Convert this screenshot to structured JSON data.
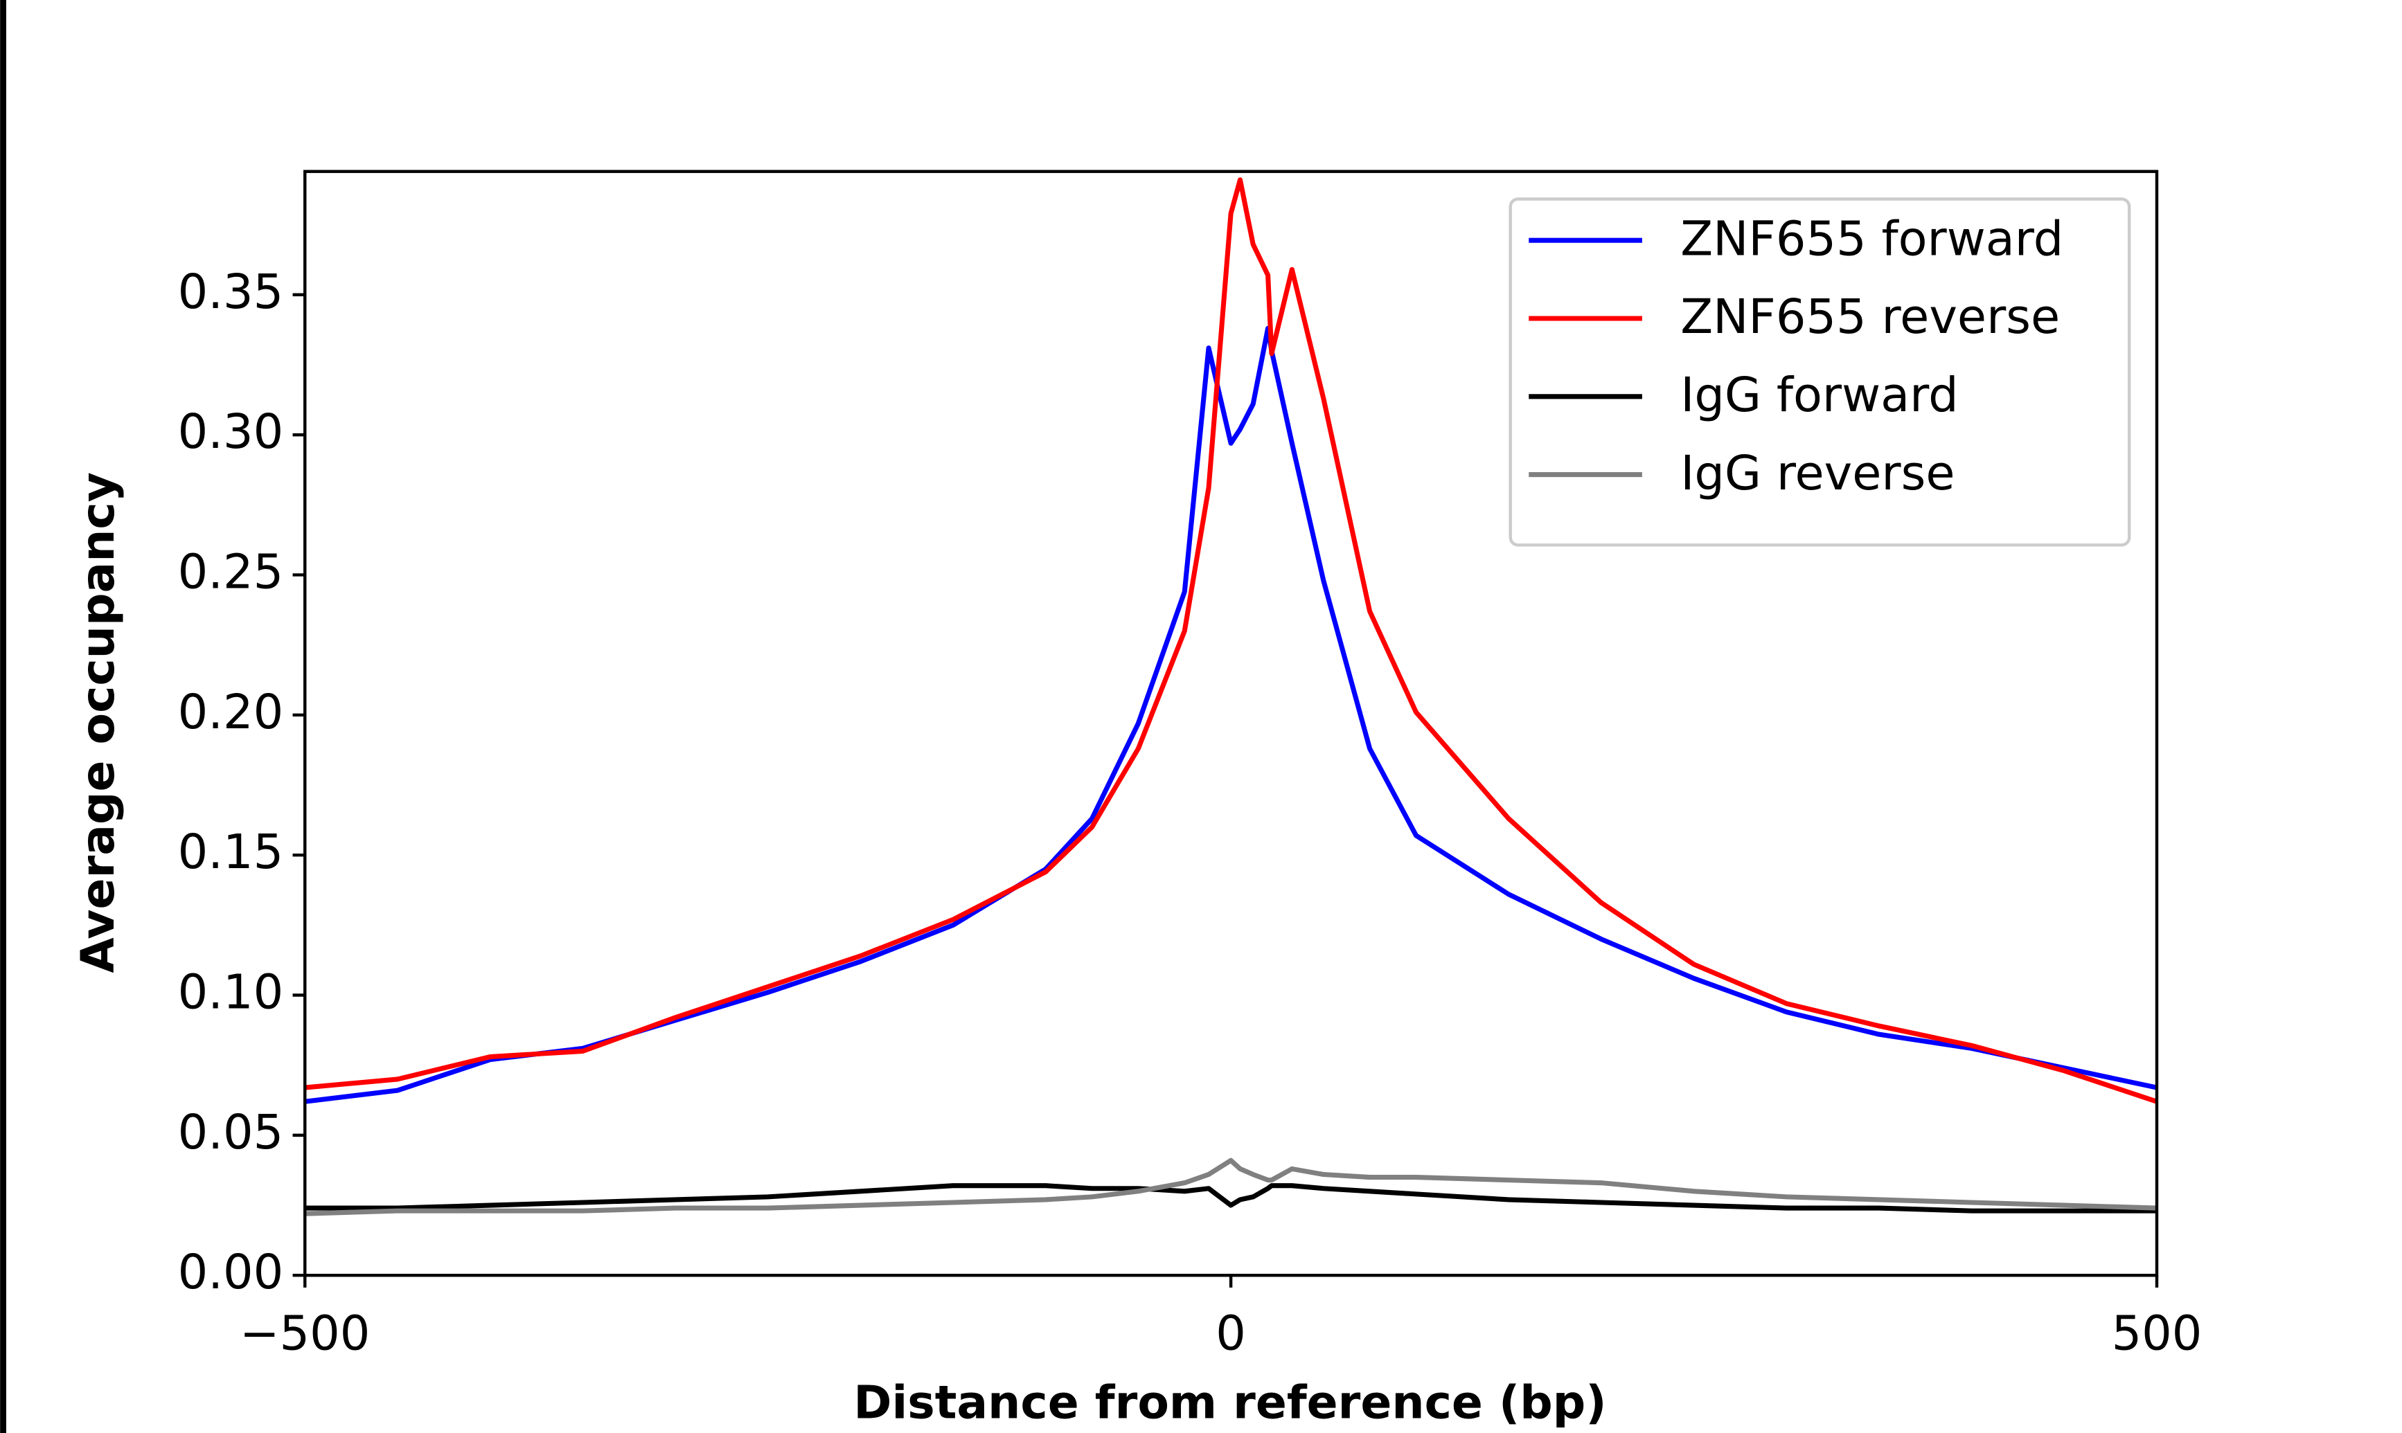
{
  "chart_data": {
    "type": "line",
    "x_label": "Distance from reference (bp)",
    "y_label": "Average occupancy",
    "xlim": [
      -500,
      500
    ],
    "xticks": [
      {
        "value": -500,
        "label": "−500"
      },
      0,
      500
    ],
    "ylim": [
      0,
      0.394
    ],
    "yticks": [
      {
        "value": 0,
        "label": "0.00"
      },
      {
        "value": 0.05,
        "label": "0.05"
      },
      {
        "value": 0.1,
        "label": "0.10"
      },
      {
        "value": 0.15,
        "label": "0.15"
      },
      {
        "value": 0.2,
        "label": "0.20"
      },
      {
        "value": 0.25,
        "label": "0.25"
      },
      {
        "value": 0.3,
        "label": "0.30"
      },
      {
        "value": 0.35,
        "label": "0.35"
      }
    ],
    "grid": false,
    "legend": "upper right",
    "x": [
      -500,
      -450,
      -400,
      -350,
      -300,
      -250,
      -200,
      -150,
      -100,
      -75,
      -50,
      -25,
      -12,
      0,
      5,
      12,
      20,
      22,
      33,
      50,
      75,
      100,
      150,
      200,
      250,
      300,
      350,
      400,
      450,
      500
    ],
    "series": [
      {
        "name": "ZNF655 forward",
        "color": "#0000ff",
        "values": [
          0.062,
          0.066,
          0.077,
          0.081,
          0.091,
          0.101,
          0.112,
          0.125,
          0.145,
          0.163,
          0.197,
          0.244,
          0.331,
          0.297,
          0.302,
          0.311,
          0.338,
          0.33,
          0.297,
          0.248,
          0.188,
          0.157,
          0.136,
          0.12,
          0.106,
          0.094,
          0.086,
          0.081,
          0.074,
          0.067
        ]
      },
      {
        "name": "ZNF655 reverse",
        "color": "#ff0000",
        "values": [
          0.067,
          0.07,
          0.078,
          0.08,
          0.092,
          0.103,
          0.114,
          0.127,
          0.144,
          0.16,
          0.188,
          0.23,
          0.281,
          0.379,
          0.391,
          0.368,
          0.357,
          0.329,
          0.359,
          0.313,
          0.237,
          0.201,
          0.163,
          0.133,
          0.111,
          0.097,
          0.089,
          0.082,
          0.073,
          0.062
        ]
      },
      {
        "name": "IgG forward",
        "color": "#000000",
        "values": [
          0.024,
          0.024,
          0.025,
          0.026,
          0.027,
          0.028,
          0.03,
          0.032,
          0.032,
          0.031,
          0.031,
          0.03,
          0.031,
          0.025,
          0.027,
          0.028,
          0.031,
          0.032,
          0.032,
          0.031,
          0.03,
          0.029,
          0.027,
          0.026,
          0.025,
          0.024,
          0.024,
          0.023,
          0.023,
          0.023
        ]
      },
      {
        "name": "IgG reverse",
        "color": "#808080",
        "values": [
          0.022,
          0.023,
          0.023,
          0.023,
          0.024,
          0.024,
          0.025,
          0.026,
          0.027,
          0.028,
          0.03,
          0.033,
          0.036,
          0.041,
          0.038,
          0.036,
          0.034,
          0.034,
          0.038,
          0.036,
          0.035,
          0.035,
          0.034,
          0.033,
          0.03,
          0.028,
          0.027,
          0.026,
          0.025,
          0.024
        ]
      }
    ]
  }
}
